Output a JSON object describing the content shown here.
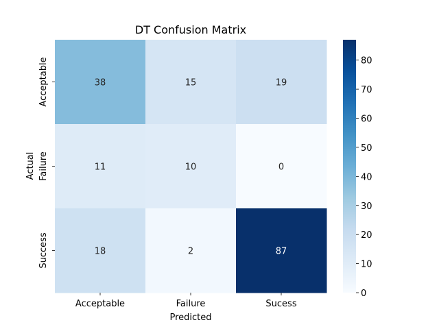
{
  "chart_data": {
    "type": "heatmap",
    "title": "DT Confusion Matrix",
    "xlabel": "Predicted",
    "ylabel": "Actual",
    "x_categories": [
      "Acceptable",
      "Failure",
      "Sucess"
    ],
    "y_categories": [
      "Acceptable",
      "Failure",
      "Success"
    ],
    "values": [
      [
        38,
        15,
        19
      ],
      [
        11,
        10,
        0
      ],
      [
        18,
        2,
        87
      ]
    ],
    "colormap": "Blues",
    "vmin": 0,
    "vmax": 87,
    "colorbar_ticks": [
      0,
      10,
      20,
      30,
      40,
      50,
      60,
      70,
      80
    ],
    "colorbar_tick_labels": [
      "0",
      "10",
      "20",
      "30",
      "40",
      "50",
      "60",
      "70",
      "80"
    ]
  }
}
